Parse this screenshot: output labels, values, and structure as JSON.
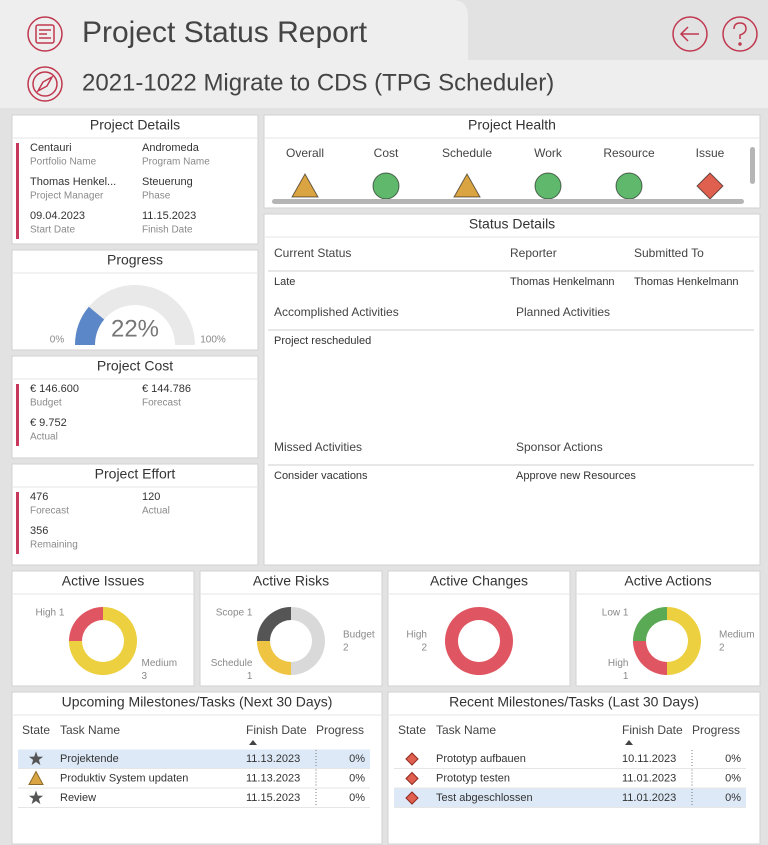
{
  "header": {
    "title": "Project Status Report",
    "subtitle": "2021-1022 Migrate to CDS (TPG Scheduler)"
  },
  "project_details": {
    "title": "Project Details",
    "fields": [
      {
        "value": "Centauri",
        "label": "Portfolio Name"
      },
      {
        "value": "Andromeda",
        "label": "Program Name"
      },
      {
        "value": "Thomas Henkel...",
        "label": "Project Manager"
      },
      {
        "value": "Steuerung",
        "label": "Phase"
      },
      {
        "value": "09.04.2023",
        "label": "Start Date"
      },
      {
        "value": "11.15.2023",
        "label": "Finish Date"
      }
    ]
  },
  "progress": {
    "title": "Progress",
    "value": 22,
    "value_label": "22%",
    "scale": [
      {
        "value": 0,
        "label": "0%"
      },
      {
        "value": 100,
        "label": "100%"
      }
    ],
    "color": "#5b86c8"
  },
  "project_cost": {
    "title": "Project Cost",
    "fields": [
      {
        "value": "€ 146.600",
        "label": "Budget"
      },
      {
        "value": "€ 144.786",
        "label": "Forecast"
      },
      {
        "value": "€ 9.752",
        "label": "Actual"
      }
    ]
  },
  "project_effort": {
    "title": "Project Effort",
    "fields": [
      {
        "value": 476,
        "label": "Forecast"
      },
      {
        "value": 120,
        "label": "Actual"
      },
      {
        "value": 356,
        "label": "Remaining"
      }
    ]
  },
  "project_health": {
    "title": "Project Health",
    "indicators": [
      {
        "label": "Overall",
        "shape": "triangle",
        "color": "#d9a441"
      },
      {
        "label": "Cost",
        "shape": "circle",
        "color": "#5fb86b"
      },
      {
        "label": "Schedule",
        "shape": "triangle",
        "color": "#d9a441"
      },
      {
        "label": "Work",
        "shape": "circle",
        "color": "#5fb86b"
      },
      {
        "label": "Resource",
        "shape": "circle",
        "color": "#5fb86b"
      },
      {
        "label": "Issue",
        "shape": "diamond",
        "color": "#e0604f"
      }
    ]
  },
  "status_details": {
    "title": "Status Details",
    "columns": [
      "Current Status",
      "Reporter",
      "Submitted To"
    ],
    "values": [
      "Late",
      "Thomas Henkelmann",
      "Thomas Henkelmann"
    ],
    "sections": [
      {
        "label": "Accomplished Activities",
        "text": "Project rescheduled"
      },
      {
        "label": "Planned Activities"
      },
      {
        "label": "Missed Activities",
        "text": "Consider vacations"
      },
      {
        "label": "Sponsor Actions",
        "text": "Approve new Resources"
      }
    ]
  },
  "summaries": [
    {
      "title": "Active Issues",
      "segments": [
        {
          "name": "Medium",
          "value": 3,
          "color": "#ecd03f"
        },
        {
          "name": "High",
          "value": 1,
          "color": "#e05562"
        }
      ]
    },
    {
      "title": "Active Risks",
      "segments": [
        {
          "name": "Budget",
          "value": 2,
          "color": "#d9d9d9"
        },
        {
          "name": "Schedule",
          "value": 1,
          "color": "#f0c443"
        },
        {
          "name": "Scope",
          "value": 1,
          "color": "#555555"
        }
      ]
    },
    {
      "title": "Active Changes",
      "segments": [
        {
          "name": "High",
          "value": 2,
          "color": "#e05562"
        }
      ]
    },
    {
      "title": "Active Actions",
      "segments": [
        {
          "name": "Medium",
          "value": 2,
          "color": "#ecd03f"
        },
        {
          "name": "High",
          "value": 1,
          "color": "#e05562"
        },
        {
          "name": "Low",
          "value": 1,
          "color": "#5aaa55"
        }
      ]
    }
  ],
  "milestones": [
    {
      "title": "Upcoming Milestones/Tasks (Next 30 Days)",
      "columns": [
        "State",
        "Task Name",
        "Finish Date",
        "Progress"
      ],
      "rows": [
        {
          "state": "star",
          "task": "Projektende",
          "finish": "11.13.2023",
          "progress": "0%",
          "selected": true
        },
        {
          "state": "triangle",
          "task": "Produktiv System updaten",
          "finish": "11.13.2023",
          "progress": "0%",
          "selected": false
        },
        {
          "state": "star",
          "task": "Review",
          "finish": "11.15.2023",
          "progress": "0%",
          "selected": false
        }
      ]
    },
    {
      "title": "Recent Milestones/Tasks (Last 30 Days)",
      "columns": [
        "State",
        "Task Name",
        "Finish Date",
        "Progress"
      ],
      "rows": [
        {
          "state": "diamond",
          "task": "Prototyp aufbauen",
          "finish": "10.11.2023",
          "progress": "0%",
          "selected": false
        },
        {
          "state": "diamond",
          "task": "Prototyp testen",
          "finish": "11.01.2023",
          "progress": "0%",
          "selected": false
        },
        {
          "state": "diamond",
          "task": "Test abgeschlossen",
          "finish": "11.01.2023",
          "progress": "0%",
          "selected": true
        }
      ]
    }
  ]
}
